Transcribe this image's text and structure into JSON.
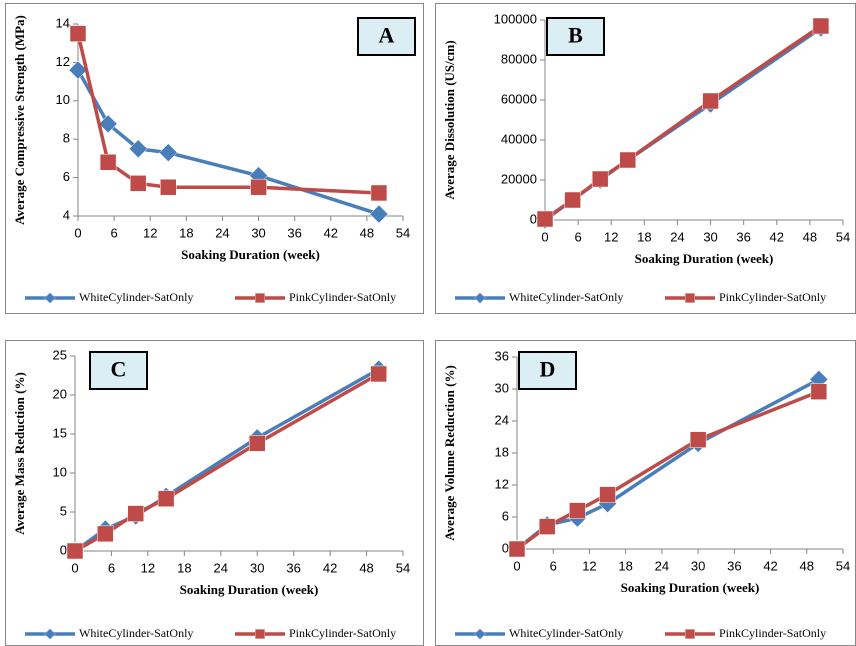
{
  "chart_data": [
    {
      "type": "line",
      "title": "A",
      "x_label": "Soaking Duration (week)",
      "y_label": "Average Compressive Strength (MPa)",
      "x": [
        0,
        5,
        10,
        15,
        30,
        50
      ],
      "xlim": [
        0,
        54
      ],
      "xticks": [
        0,
        6,
        12,
        18,
        24,
        30,
        36,
        42,
        48,
        54
      ],
      "ylim": [
        4,
        14
      ],
      "yticks": [
        4,
        6,
        8,
        10,
        12,
        14
      ],
      "series": [
        {
          "name": "WhiteCylinder-SatOnly",
          "color": "#4a7ebb",
          "marker": "diamond",
          "values": [
            11.6,
            8.8,
            7.5,
            7.3,
            6.1,
            4.1
          ]
        },
        {
          "name": "PinkCylinder-SatOnly",
          "color": "#be4b48",
          "marker": "square",
          "values": [
            13.5,
            6.8,
            5.7,
            5.5,
            5.5,
            5.2
          ]
        }
      ]
    },
    {
      "type": "line",
      "title": "B",
      "x_label": "Soaking Duration (week)",
      "y_label": "Average Dissolution (US/cm)",
      "x": [
        0,
        5,
        10,
        15,
        30,
        50
      ],
      "xlim": [
        0,
        54
      ],
      "xticks": [
        0,
        6,
        12,
        18,
        24,
        30,
        36,
        42,
        48,
        54
      ],
      "ylim": [
        0,
        100000
      ],
      "yticks": [
        0,
        20000,
        40000,
        60000,
        80000,
        100000
      ],
      "series": [
        {
          "name": "WhiteCylinder-SatOnly",
          "color": "#4a7ebb",
          "marker": "diamond",
          "values": [
            0,
            10000,
            20000,
            30000,
            58000,
            96000
          ]
        },
        {
          "name": "PinkCylinder-SatOnly",
          "color": "#be4b48",
          "marker": "square",
          "values": [
            500,
            10000,
            20500,
            30000,
            59500,
            97000
          ]
        }
      ]
    },
    {
      "type": "line",
      "title": "C",
      "x_label": "Soaking Duration (week)",
      "y_label": "Average Mass Reduction (%)",
      "x": [
        0,
        5,
        10,
        15,
        30,
        50
      ],
      "xlim": [
        0,
        54
      ],
      "xticks": [
        0,
        6,
        12,
        18,
        24,
        30,
        36,
        42,
        48,
        54
      ],
      "ylim": [
        0,
        25
      ],
      "yticks": [
        0,
        5,
        10,
        15,
        20,
        25
      ],
      "series": [
        {
          "name": "WhiteCylinder-SatOnly",
          "color": "#4a7ebb",
          "marker": "diamond",
          "values": [
            0,
            2.8,
            4.5,
            7,
            14.5,
            23.3
          ]
        },
        {
          "name": "PinkCylinder-SatOnly",
          "color": "#be4b48",
          "marker": "square",
          "values": [
            0,
            2.2,
            4.8,
            6.7,
            13.8,
            22.7
          ]
        }
      ]
    },
    {
      "type": "line",
      "title": "D",
      "x_label": "Soaking Duration (week)",
      "y_label": "Average Volume Reduction (%)",
      "x": [
        0,
        5,
        10,
        15,
        30,
        50
      ],
      "xlim": [
        0,
        54
      ],
      "xticks": [
        0,
        6,
        12,
        18,
        24,
        30,
        36,
        42,
        48,
        54
      ],
      "ylim": [
        0,
        36
      ],
      "yticks": [
        0,
        6,
        12,
        18,
        24,
        30,
        36
      ],
      "series": [
        {
          "name": "WhiteCylinder-SatOnly",
          "color": "#4a7ebb",
          "marker": "diamond",
          "values": [
            0,
            4.5,
            5.8,
            8.5,
            19.8,
            31.8
          ]
        },
        {
          "name": "PinkCylinder-SatOnly",
          "color": "#be4b48",
          "marker": "square",
          "values": [
            0,
            4.2,
            7.2,
            10.2,
            20.5,
            29.5
          ]
        }
      ]
    }
  ]
}
